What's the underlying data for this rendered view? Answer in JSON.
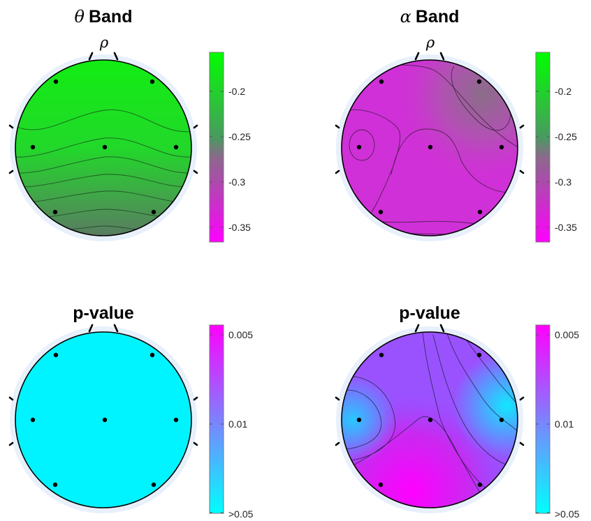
{
  "chart_data": [
    {
      "type": "heatmap",
      "title_symbol": "θ",
      "title": "Band",
      "subtitle": "ρ",
      "colormap": [
        "#ff00ff",
        "#00ff00"
      ],
      "colorbar_ticks": [
        "-0.2",
        "-0.25",
        "-0.3",
        "-0.35"
      ],
      "colorbar_tick_values": [
        -0.2,
        -0.25,
        -0.3,
        -0.35
      ],
      "clim": [
        -0.365,
        -0.155
      ],
      "electrodes": 8
    },
    {
      "type": "heatmap",
      "title_symbol": "α",
      "title": "Band",
      "subtitle": "ρ",
      "colormap": [
        "#ff00ff",
        "#00ff00"
      ],
      "colorbar_ticks": [
        "-0.2",
        "-0.25",
        "-0.3",
        "-0.35"
      ],
      "colorbar_tick_values": [
        -0.2,
        -0.25,
        -0.3,
        -0.35
      ],
      "clim": [
        -0.365,
        -0.155
      ],
      "electrodes": 8
    },
    {
      "type": "heatmap",
      "title": "p-value",
      "colormap": [
        "#00ffff",
        "#ff00ff"
      ],
      "colorbar_ticks": [
        "0.005",
        "0.01",
        ">0.05"
      ],
      "electrodes": 8
    },
    {
      "type": "heatmap",
      "title": "p-value",
      "colormap": [
        "#00ffff",
        "#ff00ff"
      ],
      "colorbar_ticks": [
        "0.005",
        "0.01",
        ">0.05"
      ],
      "electrodes": 8
    }
  ]
}
